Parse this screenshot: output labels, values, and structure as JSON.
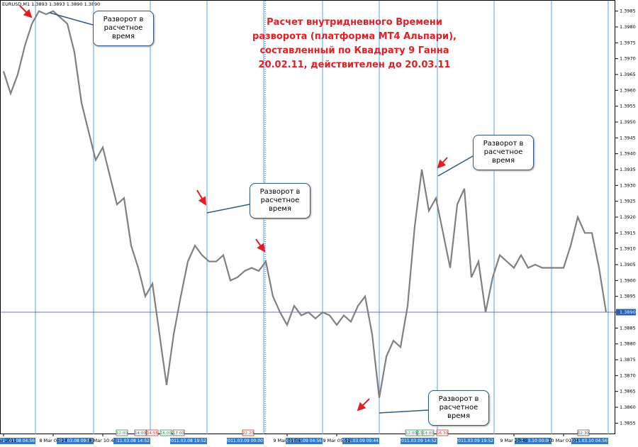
{
  "header": {
    "symbol_info": "EURUSD,M1  1.3893 1.3893 1.3890 1.3890"
  },
  "chart_data": {
    "type": "line",
    "title": "Расчет внутридневного Времени\nразворота (платформа MT4 Альпари),\nсоставленный по Квадрату 9 Ганна\n20.02.11, действителен до 20.03.11",
    "categories": [
      "8 Mar 2011",
      null,
      null,
      null,
      null,
      null,
      null,
      "8 Mar 06:24",
      null,
      null,
      null,
      null,
      null,
      null,
      "8 Mar 10:40",
      null,
      null,
      null,
      null,
      null,
      null,
      null,
      null,
      null,
      null,
      null,
      null,
      null,
      null,
      null,
      null,
      null,
      null,
      null,
      null,
      null,
      null,
      null,
      null,
      null,
      "9 Mar 01:36",
      null,
      null,
      null,
      null,
      null,
      null,
      "9 Mar 05:52",
      null,
      null,
      null,
      null,
      null,
      null,
      null,
      null,
      null,
      null,
      null,
      null,
      null,
      null,
      null,
      null,
      null,
      null,
      null,
      null,
      null,
      null,
      null,
      null,
      "9 Mar 20:48",
      null,
      null,
      null,
      null,
      null,
      null,
      "10 Mar 01:04",
      null,
      null,
      null,
      null,
      null,
      null
    ],
    "series": [
      {
        "name": "EURUSD,M1",
        "color": "#808080",
        "values": [
          1.3966,
          1.3959,
          1.3965,
          1.3974,
          1.3981,
          1.3985,
          1.3984,
          1.3985,
          1.3983,
          1.3981,
          1.3972,
          1.3956,
          1.3947,
          1.3938,
          1.3942,
          1.3933,
          1.3924,
          1.3926,
          1.3911,
          1.3904,
          1.3895,
          1.3899,
          1.3883,
          1.3867,
          1.3883,
          1.3895,
          1.3906,
          1.3911,
          1.3908,
          1.3906,
          1.3906,
          1.3908,
          1.39,
          1.3901,
          1.3903,
          1.3904,
          1.3903,
          1.3906,
          1.3895,
          1.389,
          1.3886,
          1.3892,
          1.3889,
          1.389,
          1.3888,
          1.389,
          1.3889,
          1.3886,
          1.3889,
          1.3887,
          1.3892,
          1.3895,
          1.3883,
          1.3863,
          1.3876,
          1.3881,
          1.3879,
          1.3892,
          1.3917,
          1.3935,
          1.3922,
          1.3926,
          1.3915,
          1.3904,
          1.3924,
          1.3929,
          1.3901,
          1.3906,
          1.389,
          1.3901,
          1.3908,
          1.3906,
          1.3904,
          1.3908,
          1.3904,
          1.3905,
          1.3904,
          1.3904,
          1.3904,
          1.3904,
          1.3911,
          1.392,
          1.3915,
          1.3915,
          1.3904,
          1.389
        ]
      }
    ],
    "ylim": [
      1.38515,
      1.39885
    ],
    "yticks": [
      {
        "value": 1.3855,
        "label": "1.3855"
      },
      {
        "value": 1.386,
        "label": "1.3860"
      },
      {
        "value": 1.3865,
        "label": "1.3865"
      },
      {
        "value": 1.387,
        "label": "1.3870"
      },
      {
        "value": 1.3875,
        "label": "1.3875"
      },
      {
        "value": 1.388,
        "label": "1.3880"
      },
      {
        "value": 1.3885,
        "label": "1.3885"
      },
      {
        "value": 1.389,
        "label": "1.3890"
      },
      {
        "value": 1.3895,
        "label": "1.3895"
      },
      {
        "value": 1.39,
        "label": "1.3900"
      },
      {
        "value": 1.3905,
        "label": "1.3905"
      },
      {
        "value": 1.391,
        "label": "1.3910"
      },
      {
        "value": 1.3915,
        "label": "1.3915"
      },
      {
        "value": 1.392,
        "label": "1.3920"
      },
      {
        "value": 1.3925,
        "label": "1.3925"
      },
      {
        "value": 1.393,
        "label": "1.3930"
      },
      {
        "value": 1.3935,
        "label": "1.3935"
      },
      {
        "value": 1.394,
        "label": "1.3940"
      },
      {
        "value": 1.3945,
        "label": "1.3945"
      },
      {
        "value": 1.395,
        "label": "1.3950"
      },
      {
        "value": 1.3955,
        "label": "1.3955"
      },
      {
        "value": 1.396,
        "label": "1.3960"
      },
      {
        "value": 1.3965,
        "label": "1.3965"
      },
      {
        "value": 1.397,
        "label": "1.3970"
      },
      {
        "value": 1.3975,
        "label": "1.3975"
      },
      {
        "value": 1.398,
        "label": "1.3980"
      },
      {
        "value": 1.3985,
        "label": "1.3985"
      }
    ],
    "current_price": {
      "value": 1.389,
      "label": "1.3890"
    },
    "annotations": [
      "Разворот в\nрасчетное\nвремя",
      "Разворот в\nрасчетное\nвремя",
      "Разворот в\nрасчетное\nвремя",
      "Разворот в\nрасчетное\nвремя"
    ],
    "reversal_labels": [
      "2011.03.08 04:56",
      "2011.03.08 09:52",
      "2011.03.08 14:52",
      "2011.03.08 19:52",
      "2011.03.09 00:00",
      "2011.03.09 04:56",
      "2011.03.09 09:44",
      "2011.03.09 14:52",
      "2011.03.09 19:52",
      "2011.03.10 00:00",
      "2011.03.10 04:56"
    ],
    "time_markers": [
      "12:00",
      "14:00",
      "14:55",
      "16:00",
      "17:00",
      "22:20",
      "12:00",
      "13:00",
      "14:00",
      "16:30",
      "02:30"
    ]
  }
}
